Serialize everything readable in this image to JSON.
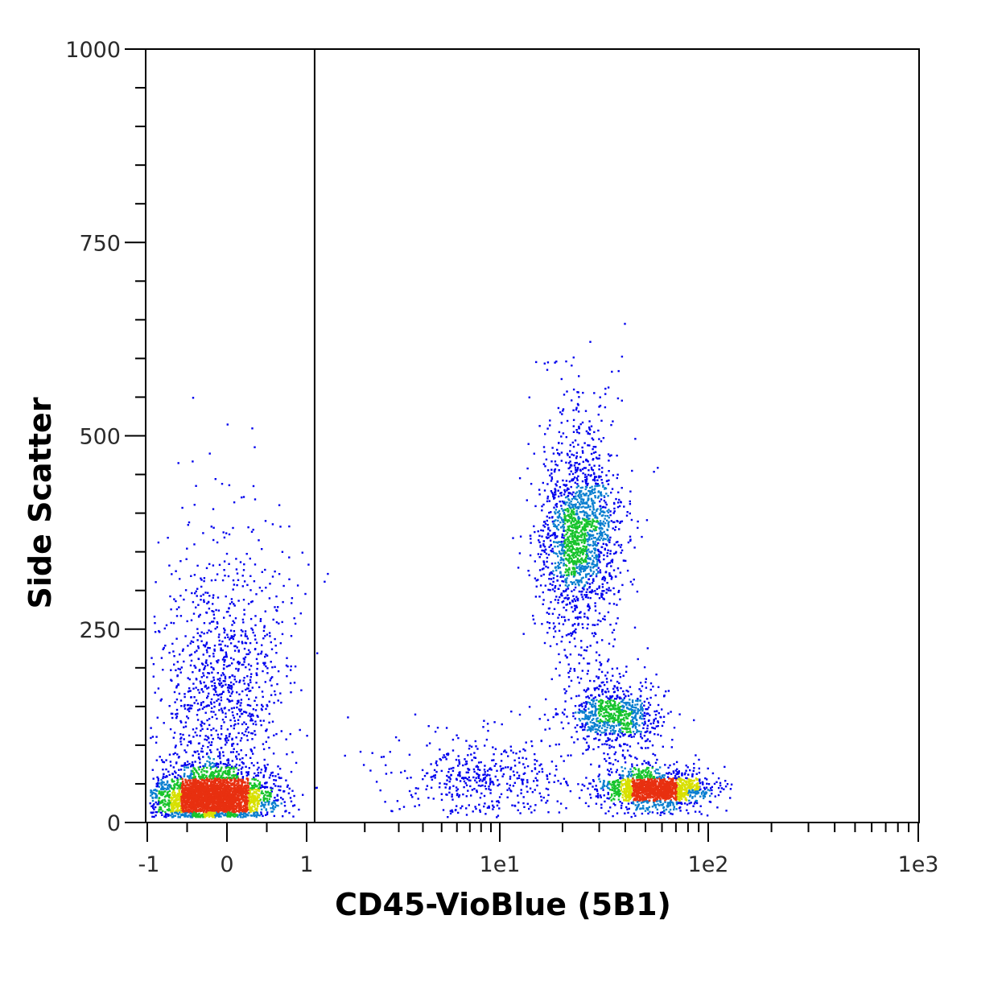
{
  "chart_data": {
    "type": "scatter",
    "plot_style": "density dot plot (blue = low density, green/yellow/red = high density)",
    "xlabel": "CD45-VioBlue (5B1)",
    "ylabel": "Side Scatter",
    "x_scale": "hybrid linear/log (biexponential)",
    "x_ticks": [
      "-1",
      "0",
      "1",
      "1e1",
      "1e2",
      "1e3"
    ],
    "x_tick_values": [
      -1,
      0,
      1,
      10,
      100,
      1000
    ],
    "y_ticks": [
      "0",
      "250",
      "500",
      "750",
      "1000"
    ],
    "y_tick_values": [
      0,
      250,
      500,
      750,
      1000
    ],
    "ylim": [
      0,
      1000
    ],
    "xlim": [
      -1,
      1000
    ],
    "gate_line_x": 1.1,
    "grid": false,
    "legend": "none",
    "density_colors": [
      "#0000ee",
      "#0a7fd0",
      "#17c42c",
      "#d8e000",
      "#e83010"
    ],
    "populations": [
      {
        "x_center": -0.2,
        "x_spread": 0.35,
        "y_center": 35,
        "y_spread": 25,
        "share": 0.36
      },
      {
        "x_center": -0.1,
        "x_spread": 0.45,
        "y_center": 180,
        "y_spread": 130,
        "share": 0.12
      },
      {
        "x_center": 24,
        "x_spread": 6,
        "y_center": 370,
        "y_spread": 90,
        "share": 0.2
      },
      {
        "x_center": 35,
        "x_spread": 10,
        "y_center": 140,
        "y_spread": 30,
        "share": 0.09
      },
      {
        "x_center": 55,
        "x_spread": 18,
        "y_center": 45,
        "y_spread": 16,
        "share": 0.18
      },
      {
        "x_center": 8,
        "x_spread": 6,
        "y_center": 60,
        "y_spread": 40,
        "share": 0.05
      }
    ]
  }
}
